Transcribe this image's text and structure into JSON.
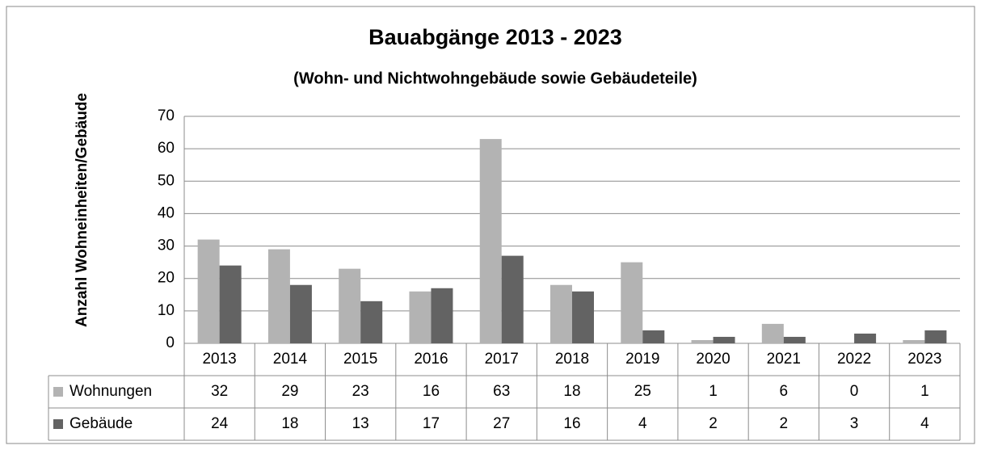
{
  "chart_data": {
    "type": "bar",
    "title": "Bauabgänge 2013 - 2023",
    "subtitle": "(Wohn- und Nichtwohngebäude sowie Gebäudeteile)",
    "y_label": "Anzahl Wohneinheiten/Gebäude",
    "categories": [
      "2013",
      "2014",
      "2015",
      "2016",
      "2017",
      "2018",
      "2019",
      "2020",
      "2021",
      "2022",
      "2023"
    ],
    "series": [
      {
        "name": "Wohnungen",
        "color": "#b3b3b3",
        "values": [
          32,
          29,
          23,
          16,
          63,
          18,
          25,
          1,
          6,
          0,
          1
        ]
      },
      {
        "name": "Gebäude",
        "color": "#636363",
        "values": [
          24,
          18,
          13,
          17,
          27,
          16,
          4,
          2,
          2,
          3,
          4
        ]
      }
    ],
    "ylim": [
      0,
      70
    ],
    "yticks": [
      0,
      10,
      20,
      30,
      40,
      50,
      60,
      70
    ],
    "grid": true
  }
}
